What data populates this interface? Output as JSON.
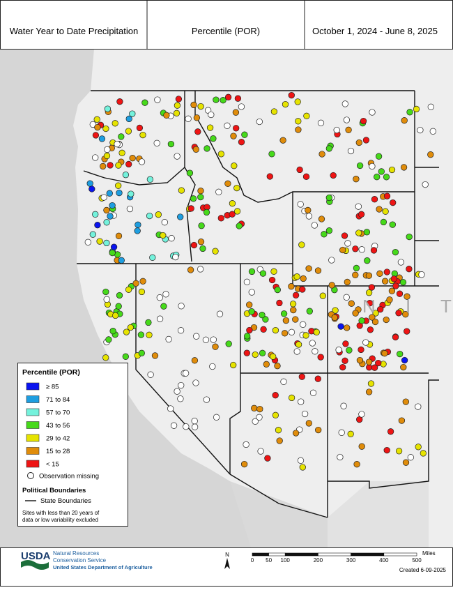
{
  "header": {
    "title": "Water Year to Date Precipitation",
    "metric": "Percentile (POR)",
    "period": "October 1, 2024 - June 8, 2025"
  },
  "legend": {
    "title": "Percentile (POR)",
    "classes": [
      {
        "label": "≥ 85",
        "color": "#0a14f0"
      },
      {
        "label": "71 to 84",
        "color": "#1e9ee0"
      },
      {
        "label": "57 to 70",
        "color": "#74f2dc"
      },
      {
        "label": "43 to 56",
        "color": "#46d91a"
      },
      {
        "label": "29 to 42",
        "color": "#e6e300"
      },
      {
        "label": "15 to 28",
        "color": "#e08c0a"
      },
      {
        "label": "< 15",
        "color": "#ee1414"
      }
    ],
    "missing": "Observation missing",
    "boundaries_title": "Political Boundaries",
    "boundaries": "State Boundaries",
    "note": [
      "Sites with less than 20 years of",
      "data or low variability excluded"
    ]
  },
  "map": {
    "label": "N I T"
  },
  "footer": {
    "agency": "USDA",
    "service": [
      "Natural Resources",
      "Conservation Service"
    ],
    "department": "United States Department of Agriculture",
    "north": "N",
    "scale": {
      "ticks": [
        0,
        50,
        100,
        200,
        300,
        400,
        500
      ],
      "unit": "Miles"
    },
    "created": "Created 6-09-2025"
  }
}
